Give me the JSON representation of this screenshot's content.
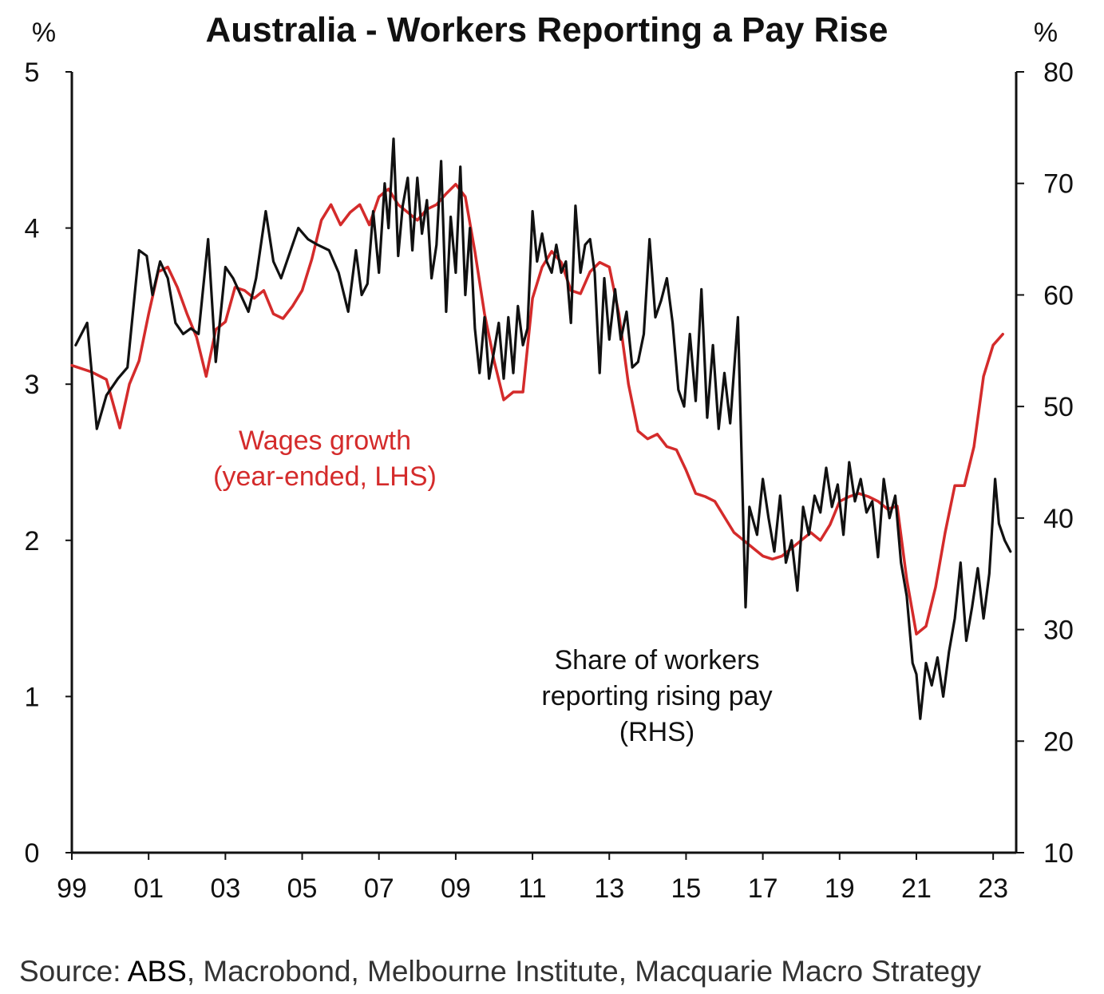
{
  "chart_data": {
    "type": "line",
    "title": "Australia - Workers Reporting a Pay Rise",
    "left_axis": {
      "unit": "%",
      "ylim": [
        0,
        5
      ],
      "ticks": [
        0,
        1,
        2,
        3,
        4,
        5
      ]
    },
    "right_axis": {
      "unit": "%",
      "ylim": [
        10,
        80
      ],
      "ticks": [
        10,
        20,
        30,
        40,
        50,
        60,
        70,
        80
      ]
    },
    "x_axis": {
      "xlim": [
        1999,
        2023.6
      ],
      "tick_values": [
        1999,
        2001,
        2003,
        2005,
        2007,
        2009,
        2011,
        2013,
        2015,
        2017,
        2019,
        2021,
        2023
      ],
      "tick_labels": [
        "99",
        "01",
        "03",
        "05",
        "07",
        "09",
        "11",
        "13",
        "15",
        "17",
        "19",
        "21",
        "23"
      ]
    },
    "grid": false,
    "series": [
      {
        "name": "Wages growth (year-ended, LHS)",
        "axis": "left",
        "color": "#d42b2b",
        "points": [
          [
            1999.0,
            3.12
          ],
          [
            1999.5,
            3.08
          ],
          [
            1999.9,
            3.03
          ],
          [
            2000.25,
            2.72
          ],
          [
            2000.5,
            3.0
          ],
          [
            2000.75,
            3.15
          ],
          [
            2001.0,
            3.45
          ],
          [
            2001.25,
            3.72
          ],
          [
            2001.5,
            3.75
          ],
          [
            2001.75,
            3.62
          ],
          [
            2002.0,
            3.45
          ],
          [
            2002.25,
            3.3
          ],
          [
            2002.5,
            3.05
          ],
          [
            2002.75,
            3.35
          ],
          [
            2003.0,
            3.4
          ],
          [
            2003.25,
            3.62
          ],
          [
            2003.5,
            3.6
          ],
          [
            2003.75,
            3.55
          ],
          [
            2004.0,
            3.6
          ],
          [
            2004.25,
            3.45
          ],
          [
            2004.5,
            3.42
          ],
          [
            2004.75,
            3.5
          ],
          [
            2005.0,
            3.6
          ],
          [
            2005.25,
            3.8
          ],
          [
            2005.5,
            4.05
          ],
          [
            2005.75,
            4.15
          ],
          [
            2006.0,
            4.02
          ],
          [
            2006.25,
            4.1
          ],
          [
            2006.5,
            4.15
          ],
          [
            2006.75,
            4.02
          ],
          [
            2007.0,
            4.2
          ],
          [
            2007.25,
            4.25
          ],
          [
            2007.5,
            4.15
          ],
          [
            2007.75,
            4.1
          ],
          [
            2008.0,
            4.05
          ],
          [
            2008.25,
            4.12
          ],
          [
            2008.5,
            4.15
          ],
          [
            2008.75,
            4.22
          ],
          [
            2009.0,
            4.28
          ],
          [
            2009.25,
            4.2
          ],
          [
            2009.5,
            3.85
          ],
          [
            2009.75,
            3.45
          ],
          [
            2010.0,
            3.15
          ],
          [
            2010.25,
            2.9
          ],
          [
            2010.5,
            2.95
          ],
          [
            2010.75,
            2.95
          ],
          [
            2011.0,
            3.55
          ],
          [
            2011.25,
            3.75
          ],
          [
            2011.5,
            3.85
          ],
          [
            2011.75,
            3.78
          ],
          [
            2012.0,
            3.6
          ],
          [
            2012.25,
            3.58
          ],
          [
            2012.5,
            3.72
          ],
          [
            2012.75,
            3.78
          ],
          [
            2013.0,
            3.75
          ],
          [
            2013.25,
            3.45
          ],
          [
            2013.5,
            3.0
          ],
          [
            2013.75,
            2.7
          ],
          [
            2014.0,
            2.65
          ],
          [
            2014.25,
            2.68
          ],
          [
            2014.5,
            2.6
          ],
          [
            2014.75,
            2.58
          ],
          [
            2015.0,
            2.45
          ],
          [
            2015.25,
            2.3
          ],
          [
            2015.5,
            2.28
          ],
          [
            2015.75,
            2.25
          ],
          [
            2016.0,
            2.15
          ],
          [
            2016.25,
            2.05
          ],
          [
            2016.5,
            2.0
          ],
          [
            2016.75,
            1.95
          ],
          [
            2017.0,
            1.9
          ],
          [
            2017.25,
            1.88
          ],
          [
            2017.5,
            1.9
          ],
          [
            2017.75,
            1.95
          ],
          [
            2018.0,
            2.0
          ],
          [
            2018.25,
            2.05
          ],
          [
            2018.5,
            2.0
          ],
          [
            2018.75,
            2.1
          ],
          [
            2019.0,
            2.25
          ],
          [
            2019.25,
            2.28
          ],
          [
            2019.5,
            2.3
          ],
          [
            2019.75,
            2.28
          ],
          [
            2020.0,
            2.25
          ],
          [
            2020.25,
            2.2
          ],
          [
            2020.5,
            2.22
          ],
          [
            2020.75,
            1.75
          ],
          [
            2021.0,
            1.4
          ],
          [
            2021.25,
            1.45
          ],
          [
            2021.5,
            1.7
          ],
          [
            2021.75,
            2.05
          ],
          [
            2022.0,
            2.35
          ],
          [
            2022.25,
            2.35
          ],
          [
            2022.5,
            2.6
          ],
          [
            2022.75,
            3.05
          ],
          [
            2023.0,
            3.25
          ],
          [
            2023.25,
            3.32
          ]
        ]
      },
      {
        "name": "Share of workers reporting rising pay (RHS)",
        "axis": "right",
        "color": "#111111",
        "points": [
          [
            1999.1,
            55.5
          ],
          [
            1999.4,
            57.5
          ],
          [
            1999.65,
            48.0
          ],
          [
            1999.9,
            51.0
          ],
          [
            2000.2,
            52.5
          ],
          [
            2000.45,
            53.5
          ],
          [
            2000.75,
            64.0
          ],
          [
            2000.95,
            63.5
          ],
          [
            2001.1,
            60.0
          ],
          [
            2001.3,
            63.0
          ],
          [
            2001.5,
            61.5
          ],
          [
            2001.7,
            57.5
          ],
          [
            2001.9,
            56.5
          ],
          [
            2002.1,
            57.0
          ],
          [
            2002.3,
            56.5
          ],
          [
            2002.55,
            65.0
          ],
          [
            2002.75,
            54.0
          ],
          [
            2003.0,
            62.5
          ],
          [
            2003.2,
            61.5
          ],
          [
            2003.4,
            60.0
          ],
          [
            2003.6,
            58.5
          ],
          [
            2003.8,
            61.5
          ],
          [
            2004.05,
            67.5
          ],
          [
            2004.25,
            63.0
          ],
          [
            2004.45,
            61.5
          ],
          [
            2004.65,
            63.5
          ],
          [
            2004.9,
            66.0
          ],
          [
            2005.15,
            65.0
          ],
          [
            2005.4,
            64.5
          ],
          [
            2005.7,
            64.0
          ],
          [
            2005.95,
            62.0
          ],
          [
            2006.2,
            58.5
          ],
          [
            2006.4,
            64.0
          ],
          [
            2006.55,
            60.0
          ],
          [
            2006.7,
            61.0
          ],
          [
            2006.85,
            67.5
          ],
          [
            2007.0,
            62.0
          ],
          [
            2007.15,
            70.0
          ],
          [
            2007.25,
            66.0
          ],
          [
            2007.38,
            74.0
          ],
          [
            2007.5,
            63.5
          ],
          [
            2007.62,
            68.0
          ],
          [
            2007.75,
            70.5
          ],
          [
            2007.87,
            64.0
          ],
          [
            2008.0,
            70.5
          ],
          [
            2008.12,
            65.5
          ],
          [
            2008.25,
            68.5
          ],
          [
            2008.37,
            61.5
          ],
          [
            2008.5,
            64.5
          ],
          [
            2008.62,
            72.0
          ],
          [
            2008.75,
            58.5
          ],
          [
            2008.87,
            67.0
          ],
          [
            2009.0,
            62.0
          ],
          [
            2009.12,
            71.5
          ],
          [
            2009.25,
            60.0
          ],
          [
            2009.37,
            66.0
          ],
          [
            2009.5,
            57.0
          ],
          [
            2009.62,
            53.0
          ],
          [
            2009.75,
            58.0
          ],
          [
            2009.87,
            52.5
          ],
          [
            2010.0,
            55.0
          ],
          [
            2010.12,
            57.5
          ],
          [
            2010.25,
            52.5
          ],
          [
            2010.37,
            58.0
          ],
          [
            2010.5,
            53.0
          ],
          [
            2010.62,
            59.0
          ],
          [
            2010.75,
            55.5
          ],
          [
            2010.87,
            57.0
          ],
          [
            2011.0,
            67.5
          ],
          [
            2011.12,
            63.0
          ],
          [
            2011.25,
            65.5
          ],
          [
            2011.37,
            63.0
          ],
          [
            2011.5,
            62.0
          ],
          [
            2011.62,
            64.5
          ],
          [
            2011.75,
            62.0
          ],
          [
            2011.87,
            63.0
          ],
          [
            2012.0,
            57.5
          ],
          [
            2012.12,
            68.0
          ],
          [
            2012.25,
            62.0
          ],
          [
            2012.37,
            64.5
          ],
          [
            2012.5,
            65.0
          ],
          [
            2012.62,
            62.0
          ],
          [
            2012.75,
            53.0
          ],
          [
            2012.87,
            61.5
          ],
          [
            2013.0,
            56.0
          ],
          [
            2013.15,
            60.5
          ],
          [
            2013.3,
            56.0
          ],
          [
            2013.45,
            58.5
          ],
          [
            2013.6,
            53.5
          ],
          [
            2013.75,
            54.0
          ],
          [
            2013.9,
            56.5
          ],
          [
            2014.05,
            65.0
          ],
          [
            2014.2,
            58.0
          ],
          [
            2014.35,
            59.5
          ],
          [
            2014.5,
            61.5
          ],
          [
            2014.65,
            57.5
          ],
          [
            2014.8,
            51.5
          ],
          [
            2014.95,
            50.0
          ],
          [
            2015.1,
            56.5
          ],
          [
            2015.25,
            50.5
          ],
          [
            2015.4,
            60.5
          ],
          [
            2015.55,
            49.0
          ],
          [
            2015.7,
            55.5
          ],
          [
            2015.85,
            48.0
          ],
          [
            2016.0,
            53.0
          ],
          [
            2016.15,
            48.5
          ],
          [
            2016.35,
            58.0
          ],
          [
            2016.55,
            32.0
          ],
          [
            2016.65,
            41.0
          ],
          [
            2016.85,
            38.5
          ],
          [
            2017.0,
            43.5
          ],
          [
            2017.15,
            40.0
          ],
          [
            2017.3,
            37.0
          ],
          [
            2017.45,
            42.0
          ],
          [
            2017.6,
            36.0
          ],
          [
            2017.75,
            38.0
          ],
          [
            2017.9,
            33.5
          ],
          [
            2018.05,
            41.0
          ],
          [
            2018.2,
            38.5
          ],
          [
            2018.35,
            42.0
          ],
          [
            2018.5,
            40.5
          ],
          [
            2018.65,
            44.5
          ],
          [
            2018.8,
            41.0
          ],
          [
            2018.95,
            43.0
          ],
          [
            2019.1,
            38.5
          ],
          [
            2019.25,
            45.0
          ],
          [
            2019.4,
            41.5
          ],
          [
            2019.55,
            43.5
          ],
          [
            2019.7,
            40.5
          ],
          [
            2019.85,
            41.5
          ],
          [
            2020.0,
            36.5
          ],
          [
            2020.15,
            43.5
          ],
          [
            2020.3,
            40.0
          ],
          [
            2020.45,
            42.0
          ],
          [
            2020.6,
            36.0
          ],
          [
            2020.75,
            33.0
          ],
          [
            2020.9,
            27.0
          ],
          [
            2021.0,
            26.0
          ],
          [
            2021.1,
            22.0
          ],
          [
            2021.25,
            27.0
          ],
          [
            2021.4,
            25.0
          ],
          [
            2021.55,
            27.5
          ],
          [
            2021.7,
            24.0
          ],
          [
            2021.85,
            28.0
          ],
          [
            2022.0,
            31.0
          ],
          [
            2022.15,
            36.0
          ],
          [
            2022.3,
            29.0
          ],
          [
            2022.45,
            32.0
          ],
          [
            2022.6,
            35.5
          ],
          [
            2022.75,
            31.0
          ],
          [
            2022.9,
            35.0
          ],
          [
            2023.05,
            43.5
          ],
          [
            2023.15,
            39.5
          ],
          [
            2023.3,
            38.0
          ],
          [
            2023.45,
            37.0
          ]
        ]
      }
    ],
    "annotations": {
      "wages_line1": "Wages growth",
      "wages_line2": "(year-ended, LHS)",
      "share_line1": "Share of workers",
      "share_line2": "reporting rising pay",
      "share_line3": "(RHS)"
    }
  },
  "source": {
    "prefix": "Source: ",
    "abs": "ABS",
    "rest": ", Macrobond, Melbourne Institute, Macquarie Macro Strategy"
  }
}
